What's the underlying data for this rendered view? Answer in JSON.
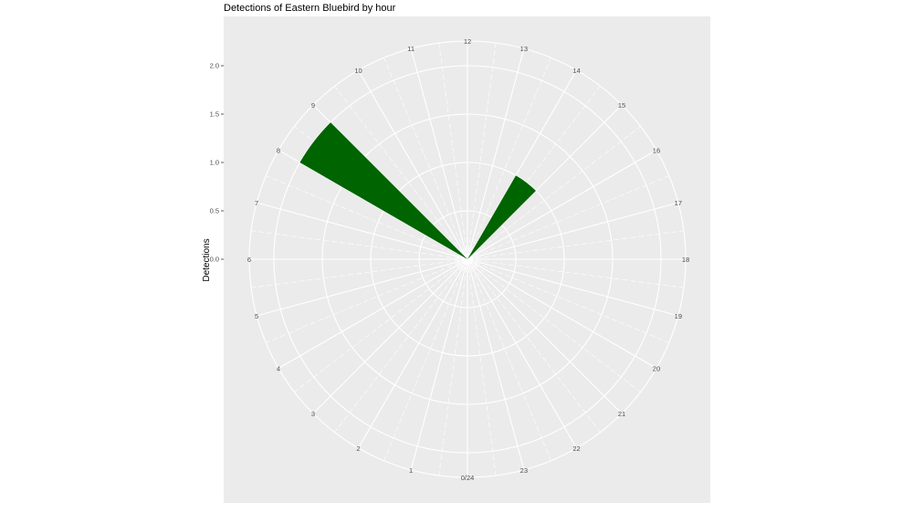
{
  "chart_data": {
    "type": "bar",
    "coord": "polar",
    "title": "Detections of Eastern Bluebird by hour",
    "xlabel": "",
    "ylabel": "Detections",
    "theta_labels": [
      "0/24",
      "1",
      "2",
      "3",
      "4",
      "5",
      "6",
      "7",
      "8",
      "9",
      "10",
      "11",
      "12",
      "13",
      "14",
      "15",
      "16",
      "17",
      "18",
      "19",
      "20",
      "21",
      "22",
      "23"
    ],
    "y_ticks": [
      "0.0",
      "0.5",
      "1.0",
      "1.5",
      "2.0"
    ],
    "ylim": [
      0,
      2.25
    ],
    "bars": [
      {
        "hour": 8,
        "value": 2
      },
      {
        "hour": 14,
        "value": 1
      }
    ],
    "bar_color": "#006400",
    "panel_color": "#EBEBEB",
    "grid": true,
    "legend": "none"
  }
}
